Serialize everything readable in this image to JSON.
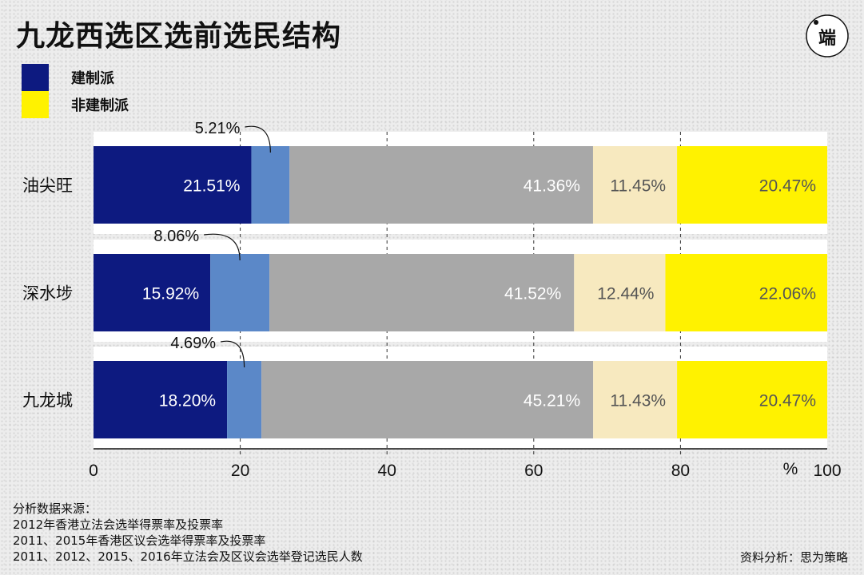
{
  "page": {
    "title": "九龙西选区选前选民结构",
    "logo_text": "端"
  },
  "legend": [
    {
      "label": "建制派",
      "color": "#0d1a80"
    },
    {
      "label": "非建制派",
      "color": "#fff200"
    }
  ],
  "chart_data": {
    "type": "bar",
    "orientation": "horizontal",
    "stacked": true,
    "categories": [
      "油尖旺",
      "深水埗",
      "九龙城"
    ],
    "series": [
      {
        "values": [
          21.51,
          15.92,
          18.2
        ],
        "labels": [
          "21.51%",
          "15.92%",
          "18.20%"
        ],
        "color": "#0d1a80",
        "label_color": "#ffffff"
      },
      {
        "values": [
          5.21,
          8.06,
          4.69
        ],
        "labels": [
          "5.21%",
          "8.06%",
          "4.69%"
        ],
        "color": "#5b88c8",
        "label_color": "#111111"
      },
      {
        "values": [
          41.36,
          41.52,
          45.21
        ],
        "labels": [
          "41.36%",
          "41.52%",
          "45.21%"
        ],
        "color": "#a8a8a8",
        "label_color": "#ffffff"
      },
      {
        "values": [
          11.45,
          12.44,
          11.43
        ],
        "labels": [
          "11.45%",
          "12.44%",
          "11.43%"
        ],
        "color": "#f7e9bf",
        "label_color": "#555555"
      },
      {
        "values": [
          20.47,
          22.06,
          20.47
        ],
        "labels": [
          "20.47%",
          "22.06%",
          "20.47%"
        ],
        "color": "#fff200",
        "label_color": "#555555"
      }
    ],
    "xlim": [
      0,
      100
    ],
    "xticks": [
      0,
      20,
      40,
      60,
      80,
      100
    ],
    "xlabel": "%",
    "grid": "dashed vertical lines at 20, 40, 60, 80"
  },
  "footer": {
    "sources": [
      "分析数据来源：",
      "2012年香港立法会选举得票率及投票率",
      "2011、2015年香港区议会选举得票率及投票率",
      "2011、2012、2015、2016年立法会及区议会选举登记选民人数"
    ],
    "credit": "资料分析：思为策略"
  }
}
